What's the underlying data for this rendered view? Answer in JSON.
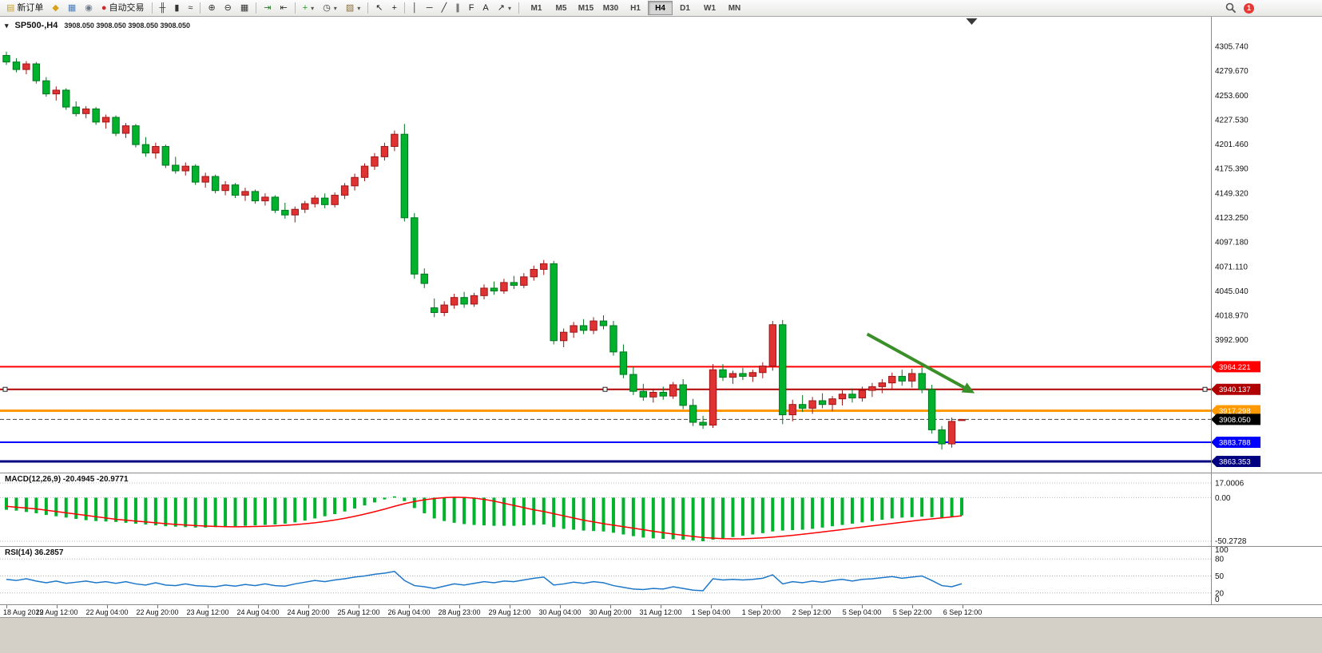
{
  "toolbar": {
    "items": [
      {
        "name": "new-order-button",
        "label": "新订单",
        "glyph": "▤",
        "glyph_color": "#c9a227"
      },
      {
        "name": "profiles-button",
        "glyph": "◆",
        "glyph_color": "#d8a21a"
      },
      {
        "name": "data-window-button",
        "glyph": "▦",
        "glyph_color": "#4a7ebb"
      },
      {
        "name": "sound-button",
        "glyph": "◉",
        "glyph_color": "#6d7b8d"
      },
      {
        "name": "autotrading-button",
        "label": "自动交易",
        "glyph": "●",
        "glyph_color": "#cc2b2b"
      },
      {
        "type": "sep"
      },
      {
        "name": "bar-chart-button",
        "glyph": "╫",
        "glyph_color": "#333333"
      },
      {
        "name": "candlestick-chart-button",
        "glyph": "▮",
        "glyph_color": "#333333"
      },
      {
        "name": "line-chart-button",
        "glyph": "≈",
        "glyph_color": "#333333"
      },
      {
        "type": "sep"
      },
      {
        "name": "zoom-in-button",
        "glyph": "⊕",
        "glyph_color": "#333333"
      },
      {
        "name": "zoom-out-button",
        "glyph": "⊖",
        "glyph_color": "#333333"
      },
      {
        "name": "tile-windows-button",
        "glyph": "▦",
        "glyph_color": "#333333"
      },
      {
        "type": "sep"
      },
      {
        "name": "auto-scroll-button",
        "glyph": "⇥",
        "glyph_color": "#2a7a2a"
      },
      {
        "name": "chart-shift-button",
        "glyph": "⇤",
        "glyph_color": "#333333"
      },
      {
        "type": "sep"
      },
      {
        "name": "indicators-button",
        "glyph": "+",
        "glyph_color": "#15a015",
        "dropdown": true
      },
      {
        "name": "periods-button",
        "glyph": "◷",
        "glyph_color": "#333333",
        "dropdown": true
      },
      {
        "name": "templates-button",
        "glyph": "▨",
        "glyph_color": "#8a6d3b",
        "dropdown": true
      },
      {
        "type": "sep"
      },
      {
        "name": "cursor-button",
        "glyph": "↖",
        "glyph_color": "#222222"
      },
      {
        "name": "crosshair-button",
        "glyph": "+",
        "glyph_color": "#222222"
      },
      {
        "type": "sep"
      },
      {
        "name": "vertical-line-button",
        "glyph": "│",
        "glyph_color": "#222222"
      },
      {
        "name": "horizontal-line-button",
        "glyph": "─",
        "glyph_color": "#222222"
      },
      {
        "name": "trendline-button",
        "glyph": "╱",
        "glyph_color": "#222222"
      },
      {
        "name": "channel-button",
        "glyph": "∥",
        "glyph_color": "#222222"
      },
      {
        "name": "fibonacci-button",
        "glyph": "F",
        "glyph_color": "#222222"
      },
      {
        "name": "text-button",
        "glyph": "A",
        "glyph_color": "#222222"
      },
      {
        "name": "arrows-button",
        "glyph": "↗",
        "glyph_color": "#222222",
        "dropdown": true
      },
      {
        "type": "sep"
      }
    ],
    "timeframes": {
      "items": [
        "M1",
        "M5",
        "M15",
        "M30",
        "H1",
        "H4",
        "D1",
        "W1",
        "MN"
      ],
      "active": "H4"
    },
    "notification_count": "1",
    "icons": {
      "search": "magnifier",
      "notification": "red-circle-count"
    }
  },
  "chart_header": {
    "symbol_period": "SP500-,H4",
    "ohlc": "3908.050 3908.050 3908.050 3908.050"
  },
  "indicators": {
    "macd_label": "MACD(12,26,9) -20.4945 -20.9771",
    "rsi_label": "RSI(14) 36.2857"
  },
  "time_axis": [
    "18 Aug 2022",
    "19 Aug 12:00",
    "22 Aug 04:00",
    "22 Aug 20:00",
    "23 Aug 12:00",
    "24 Aug 04:00",
    "24 Aug 20:00",
    "25 Aug 12:00",
    "26 Aug 04:00",
    "28 Aug 23:00",
    "29 Aug 12:00",
    "30 Aug 04:00",
    "30 Aug 20:00",
    "31 Aug 12:00",
    "1 Sep 04:00",
    "1 Sep 20:00",
    "2 Sep 12:00",
    "5 Sep 04:00",
    "5 Sep 22:00",
    "6 Sep 12:00"
  ],
  "chart_data": [
    {
      "type": "candlestick",
      "title": "SP500-,H4",
      "timeframe": "H4",
      "up_color": "#e03232",
      "up_border": "#9c1616",
      "down_color": "#00b22c",
      "down_border": "#00751f",
      "ylim": [
        3850,
        4320
      ],
      "price_axis_ticks": [
        "4305.740",
        "4279.670",
        "4253.600",
        "4227.530",
        "4201.460",
        "4175.390",
        "4149.320",
        "4123.250",
        "4097.180",
        "4071.110",
        "4045.040",
        "4018.970",
        "3992.900"
      ],
      "hlines": [
        {
          "label": "3964.221",
          "value": 3964.221,
          "color": "#ff0000",
          "width": 2,
          "selected": false
        },
        {
          "label": "3940.137",
          "value": 3940.137,
          "color": "#b00000",
          "width": 2,
          "selected": true
        },
        {
          "label": "3917.298",
          "value": 3917.298,
          "color": "#ff9900",
          "width": 3,
          "selected": false
        },
        {
          "label": "3883.788",
          "value": 3883.788,
          "color": "#0000ff",
          "width": 2,
          "selected": false
        },
        {
          "label": "3863.353",
          "value": 3863.353,
          "color": "#000080",
          "width": 3,
          "selected": false
        }
      ],
      "current_price": {
        "label": "3908.050",
        "value": 3908.05,
        "badge_color": "#000000",
        "line_color": "#444444"
      },
      "arrow_annotation": {
        "color": "#3a8f28",
        "from": {
          "bar": 86.5,
          "price": 3999
        },
        "to": {
          "bar": 97.3,
          "price": 3936
        }
      },
      "ohlc": [
        [
          4296,
          4300,
          4286,
          4289
        ],
        [
          4289,
          4293,
          4278,
          4281
        ],
        [
          4281,
          4290,
          4276,
          4287
        ],
        [
          4287,
          4289,
          4266,
          4269
        ],
        [
          4269,
          4273,
          4252,
          4255
        ],
        [
          4255,
          4263,
          4248,
          4259
        ],
        [
          4259,
          4261,
          4238,
          4241
        ],
        [
          4241,
          4247,
          4231,
          4234
        ],
        [
          4234,
          4242,
          4229,
          4239
        ],
        [
          4239,
          4241,
          4222,
          4225
        ],
        [
          4225,
          4233,
          4218,
          4230
        ],
        [
          4230,
          4232,
          4210,
          4213
        ],
        [
          4213,
          4224,
          4208,
          4221
        ],
        [
          4221,
          4223,
          4198,
          4201
        ],
        [
          4201,
          4209,
          4188,
          4192
        ],
        [
          4192,
          4203,
          4186,
          4199
        ],
        [
          4199,
          4201,
          4176,
          4179
        ],
        [
          4179,
          4188,
          4170,
          4173
        ],
        [
          4173,
          4182,
          4168,
          4178
        ],
        [
          4178,
          4180,
          4158,
          4161
        ],
        [
          4161,
          4171,
          4155,
          4167
        ],
        [
          4167,
          4169,
          4149,
          4152
        ],
        [
          4152,
          4162,
          4147,
          4158
        ],
        [
          4158,
          4160,
          4144,
          4147
        ],
        [
          4147,
          4155,
          4141,
          4151
        ],
        [
          4151,
          4153,
          4138,
          4141
        ],
        [
          4141,
          4149,
          4136,
          4145
        ],
        [
          4145,
          4147,
          4128,
          4131
        ],
        [
          4131,
          4139,
          4122,
          4126
        ],
        [
          4126,
          4135,
          4118,
          4132
        ],
        [
          4132,
          4141,
          4128,
          4138
        ],
        [
          4138,
          4147,
          4134,
          4144
        ],
        [
          4144,
          4149,
          4133,
          4137
        ],
        [
          4137,
          4150,
          4134,
          4147
        ],
        [
          4147,
          4160,
          4143,
          4157
        ],
        [
          4157,
          4170,
          4152,
          4166
        ],
        [
          4166,
          4181,
          4162,
          4178
        ],
        [
          4178,
          4192,
          4174,
          4188
        ],
        [
          4188,
          4203,
          4184,
          4199
        ],
        [
          4199,
          4216,
          4194,
          4212
        ],
        [
          4212,
          4223,
          4119,
          4123
        ],
        [
          4123,
          4128,
          4058,
          4063
        ],
        [
          4063,
          4069,
          4048,
          4053
        ],
        [
          4027,
          4037,
          4017,
          4022
        ],
        [
          4022,
          4034,
          4018,
          4030
        ],
        [
          4030,
          4042,
          4026,
          4038
        ],
        [
          4038,
          4044,
          4027,
          4031
        ],
        [
          4031,
          4043,
          4028,
          4040
        ],
        [
          4040,
          4052,
          4036,
          4048
        ],
        [
          4048,
          4055,
          4041,
          4045
        ],
        [
          4045,
          4058,
          4042,
          4054
        ],
        [
          4054,
          4061,
          4047,
          4051
        ],
        [
          4051,
          4064,
          4048,
          4060
        ],
        [
          4060,
          4072,
          4056,
          4068
        ],
        [
          4068,
          4078,
          4062,
          4074
        ],
        [
          4074,
          4077,
          3988,
          3992
        ],
        [
          3992,
          4005,
          3985,
          4001
        ],
        [
          4001,
          4012,
          3995,
          4008
        ],
        [
          4008,
          4015,
          3999,
          4003
        ],
        [
          4003,
          4017,
          3999,
          4013
        ],
        [
          4013,
          4019,
          4004,
          4008
        ],
        [
          4008,
          4013,
          3976,
          3980
        ],
        [
          3980,
          3988,
          3952,
          3956
        ],
        [
          3956,
          3964,
          3934,
          3938
        ],
        [
          3938,
          3946,
          3928,
          3932
        ],
        [
          3932,
          3940,
          3926,
          3937
        ],
        [
          3937,
          3943,
          3929,
          3933
        ],
        [
          3933,
          3948,
          3930,
          3945
        ],
        [
          3945,
          3951,
          3919,
          3923
        ],
        [
          3923,
          3930,
          3901,
          3905
        ],
        [
          3905,
          3912,
          3898,
          3902
        ],
        [
          3902,
          3967,
          3899,
          3961
        ],
        [
          3961,
          3967,
          3949,
          3953
        ],
        [
          3953,
          3960,
          3946,
          3957
        ],
        [
          3957,
          3963,
          3950,
          3954
        ],
        [
          3954,
          3961,
          3948,
          3958
        ],
        [
          3958,
          3969,
          3952,
          3965
        ],
        [
          3965,
          4013,
          3960,
          4009
        ],
        [
          4009,
          4014,
          3903,
          3913
        ],
        [
          3913,
          3929,
          3906,
          3924
        ],
        [
          3924,
          3934,
          3916,
          3920
        ],
        [
          3920,
          3932,
          3914,
          3928
        ],
        [
          3928,
          3936,
          3920,
          3924
        ],
        [
          3924,
          3933,
          3917,
          3930
        ],
        [
          3930,
          3939,
          3923,
          3935
        ],
        [
          3935,
          3941,
          3926,
          3931
        ],
        [
          3931,
          3943,
          3927,
          3939
        ],
        [
          3939,
          3947,
          3932,
          3943
        ],
        [
          3943,
          3951,
          3936,
          3947
        ],
        [
          3947,
          3958,
          3940,
          3954
        ],
        [
          3954,
          3961,
          3944,
          3949
        ],
        [
          3949,
          3962,
          3942,
          3957
        ],
        [
          3957,
          3963,
          3936,
          3940
        ],
        [
          3940,
          3945,
          3893,
          3897
        ],
        [
          3897,
          3901,
          3876,
          3882
        ],
        [
          3882,
          3910,
          3878,
          3906
        ],
        [
          3908.05,
          3908.05,
          3908.05,
          3908.05
        ]
      ]
    },
    {
      "type": "bar",
      "name": "MACD(12,26,9)",
      "values_label": "-20.4945 -20.9771",
      "histogram_color": "#00b22c",
      "signal_color": "#ff0000",
      "scale_ticks": [
        "17.0006",
        "0.00",
        "-50.2728"
      ],
      "main": [
        -14,
        -15,
        -16.5,
        -18,
        -20,
        -21.5,
        -23,
        -24.5,
        -26,
        -27,
        -27.5,
        -28,
        -29,
        -30,
        -31,
        -32,
        -33,
        -33.5,
        -34,
        -34.5,
        -34.5,
        -34,
        -33.5,
        -33,
        -32.5,
        -32,
        -31.5,
        -31,
        -30,
        -28.5,
        -26.5,
        -24,
        -21.5,
        -19,
        -16,
        -12.5,
        -9,
        -5.5,
        -2,
        1.5,
        -4,
        -12,
        -18,
        -24,
        -27,
        -29,
        -30.5,
        -31.5,
        -32,
        -32.5,
        -32.5,
        -32.5,
        -32,
        -31.5,
        -31,
        -34,
        -36,
        -37,
        -38,
        -38.5,
        -39,
        -40.5,
        -42.5,
        -44.5,
        -46,
        -47,
        -47.5,
        -48,
        -48.5,
        -49.5,
        -50.3,
        -48.5,
        -47,
        -45.5,
        -44,
        -42.5,
        -41,
        -39,
        -38,
        -37.5,
        -37,
        -36,
        -34.5,
        -33,
        -31.5,
        -30,
        -28.5,
        -27,
        -25.5,
        -24,
        -23,
        -22.5,
        -22,
        -22.5,
        -23.5,
        -22.5,
        -20.4945
      ],
      "signal": [
        -10,
        -11,
        -12,
        -13,
        -14.5,
        -16,
        -17.5,
        -19,
        -20.5,
        -22,
        -23.5,
        -25,
        -26,
        -27,
        -28,
        -29,
        -30,
        -30.8,
        -31.5,
        -32.2,
        -32.8,
        -33.2,
        -33.5,
        -33.6,
        -33.5,
        -33.3,
        -33,
        -32.6,
        -32,
        -31.2,
        -30.2,
        -29,
        -27.5,
        -25.8,
        -23.8,
        -21.5,
        -19,
        -16.2,
        -13.2,
        -10,
        -7,
        -4.5,
        -2.5,
        -1,
        0,
        0.5,
        0.3,
        -0.5,
        -2,
        -4,
        -6.5,
        -9,
        -11.5,
        -14,
        -16,
        -18.5,
        -21,
        -23.5,
        -26,
        -28,
        -30,
        -31.8,
        -33.5,
        -35.2,
        -37,
        -38.8,
        -40.4,
        -42,
        -43.4,
        -44.8,
        -46,
        -46.8,
        -47.3,
        -47.5,
        -47.4,
        -47,
        -46.4,
        -45.6,
        -44.6,
        -43.5,
        -42.3,
        -41,
        -39.6,
        -38.2,
        -36.8,
        -35.4,
        -34,
        -32.6,
        -31.2,
        -29.8,
        -28.4,
        -27,
        -25.7,
        -24.5,
        -23.4,
        -22.2,
        -20.9771
      ]
    },
    {
      "type": "line",
      "name": "RSI(14)",
      "value": "36.2857",
      "line_color": "#1d77c9",
      "scale_ticks": [
        "100",
        "80",
        "50",
        "20",
        "0"
      ],
      "levels": [
        80,
        50,
        20
      ],
      "ylim": [
        0,
        100
      ],
      "values": [
        44,
        42,
        45,
        41,
        38,
        41,
        37,
        39,
        41,
        38,
        40,
        37,
        40,
        36,
        34,
        38,
        34,
        33,
        36,
        33,
        32,
        31,
        34,
        32,
        35,
        33,
        36,
        33,
        32,
        36,
        39,
        42,
        40,
        43,
        45,
        48,
        50,
        53,
        55,
        58,
        42,
        33,
        31,
        28,
        32,
        36,
        34,
        37,
        40,
        38,
        41,
        40,
        43,
        46,
        48,
        34,
        36,
        39,
        37,
        40,
        38,
        33,
        30,
        27,
        26,
        28,
        27,
        31,
        28,
        25,
        24,
        45,
        43,
        44,
        43,
        44,
        46,
        52,
        36,
        40,
        38,
        41,
        39,
        42,
        44,
        41,
        44,
        45,
        47,
        49,
        46,
        48,
        50,
        42,
        33,
        31,
        36.2857
      ]
    }
  ]
}
